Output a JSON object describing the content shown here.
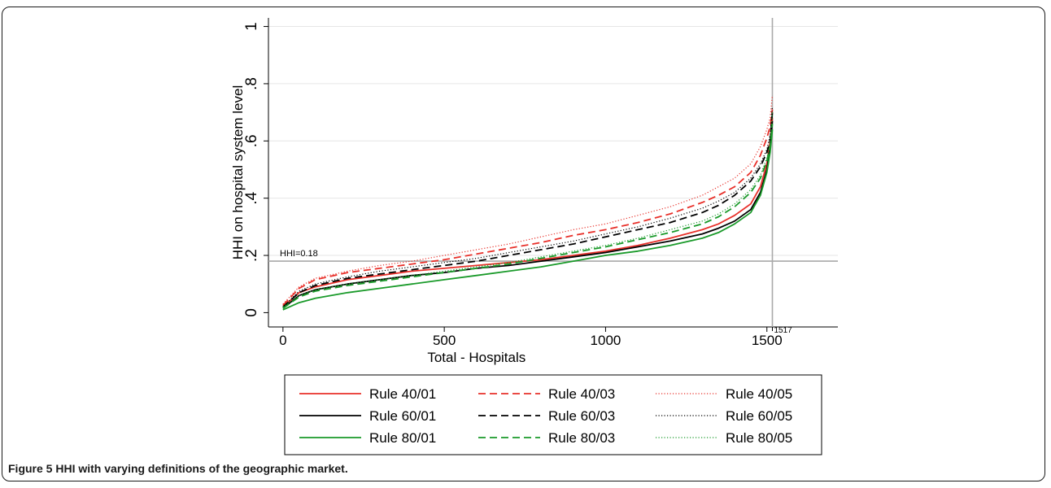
{
  "caption": {
    "label": "Figure 5",
    "text": " HHI with varying definitions of the geographic market."
  },
  "chart_data": {
    "type": "line",
    "title": "",
    "xlabel": "Total -  Hospitals",
    "ylabel": "HHI on hospital system level",
    "xlim": [
      -45,
      1720
    ],
    "ylim": [
      -0.05,
      1.03
    ],
    "xticks": [
      0,
      500,
      1000,
      1500
    ],
    "xtick_labels": [
      "0",
      "500",
      "1000",
      "1500"
    ],
    "yticks": [
      0,
      0.2,
      0.4,
      0.6,
      0.8,
      1
    ],
    "ytick_labels": [
      "0",
      ".2",
      ".4",
      ".6",
      ".8",
      "1"
    ],
    "grid": true,
    "reference_lines": [
      {
        "axis": "y",
        "value": 0.18,
        "label": "HHI=0.18"
      },
      {
        "axis": "x",
        "value": 1517,
        "label": "1517"
      }
    ],
    "legend": {
      "position": "bottom",
      "columns": 3
    },
    "x": [
      0,
      50,
      100,
      200,
      300,
      400,
      500,
      600,
      700,
      800,
      900,
      1000,
      1100,
      1200,
      1300,
      1350,
      1400,
      1450,
      1480,
      1500,
      1510,
      1517
    ],
    "series": [
      {
        "name": "Rule 40/01",
        "color": "#e8302a",
        "dash": "solid",
        "values": [
          0.02,
          0.07,
          0.09,
          0.115,
          0.13,
          0.145,
          0.155,
          0.165,
          0.175,
          0.185,
          0.2,
          0.215,
          0.235,
          0.26,
          0.29,
          0.31,
          0.34,
          0.38,
          0.44,
          0.52,
          0.6,
          0.68
        ]
      },
      {
        "name": "Rule 40/03",
        "color": "#e8302a",
        "dash": "dashed",
        "values": [
          0.025,
          0.085,
          0.115,
          0.14,
          0.155,
          0.17,
          0.185,
          0.205,
          0.225,
          0.245,
          0.27,
          0.29,
          0.315,
          0.345,
          0.385,
          0.41,
          0.44,
          0.49,
          0.55,
          0.61,
          0.65,
          0.71
        ]
      },
      {
        "name": "Rule 40/05",
        "color": "#e8302a",
        "dash": "dotted",
        "values": [
          0.03,
          0.09,
          0.12,
          0.145,
          0.165,
          0.18,
          0.2,
          0.22,
          0.24,
          0.265,
          0.29,
          0.31,
          0.34,
          0.37,
          0.41,
          0.44,
          0.47,
          0.52,
          0.58,
          0.64,
          0.68,
          0.76
        ]
      },
      {
        "name": "Rule 60/01",
        "color": "#000000",
        "dash": "solid",
        "values": [
          0.015,
          0.06,
          0.08,
          0.1,
          0.115,
          0.13,
          0.14,
          0.155,
          0.165,
          0.18,
          0.195,
          0.21,
          0.23,
          0.25,
          0.275,
          0.295,
          0.32,
          0.36,
          0.42,
          0.5,
          0.58,
          0.67
        ]
      },
      {
        "name": "Rule 60/03",
        "color": "#000000",
        "dash": "dashed",
        "values": [
          0.02,
          0.07,
          0.095,
          0.12,
          0.135,
          0.15,
          0.165,
          0.18,
          0.2,
          0.22,
          0.24,
          0.265,
          0.29,
          0.315,
          0.35,
          0.375,
          0.41,
          0.46,
          0.51,
          0.56,
          0.6,
          0.7
        ]
      },
      {
        "name": "Rule 60/05",
        "color": "#000000",
        "dash": "dotted",
        "values": [
          0.02,
          0.075,
          0.1,
          0.125,
          0.145,
          0.16,
          0.175,
          0.19,
          0.21,
          0.23,
          0.25,
          0.275,
          0.3,
          0.33,
          0.365,
          0.39,
          0.42,
          0.47,
          0.52,
          0.57,
          0.62,
          0.72
        ]
      },
      {
        "name": "Rule 80/01",
        "color": "#1a9a2a",
        "dash": "solid",
        "values": [
          0.01,
          0.035,
          0.05,
          0.07,
          0.085,
          0.1,
          0.115,
          0.13,
          0.145,
          0.16,
          0.18,
          0.2,
          0.215,
          0.235,
          0.26,
          0.28,
          0.31,
          0.35,
          0.41,
          0.49,
          0.56,
          0.64
        ]
      },
      {
        "name": "Rule 80/03",
        "color": "#1a9a2a",
        "dash": "dashed",
        "values": [
          0.015,
          0.055,
          0.075,
          0.095,
          0.11,
          0.125,
          0.14,
          0.155,
          0.17,
          0.19,
          0.21,
          0.23,
          0.255,
          0.28,
          0.31,
          0.335,
          0.37,
          0.42,
          0.47,
          0.53,
          0.58,
          0.66
        ]
      },
      {
        "name": "Rule 80/05",
        "color": "#1a9a2a",
        "dash": "dotted",
        "values": [
          0.02,
          0.06,
          0.08,
          0.1,
          0.115,
          0.13,
          0.145,
          0.16,
          0.175,
          0.195,
          0.215,
          0.235,
          0.26,
          0.29,
          0.32,
          0.345,
          0.38,
          0.43,
          0.48,
          0.54,
          0.59,
          0.7
        ]
      }
    ]
  }
}
